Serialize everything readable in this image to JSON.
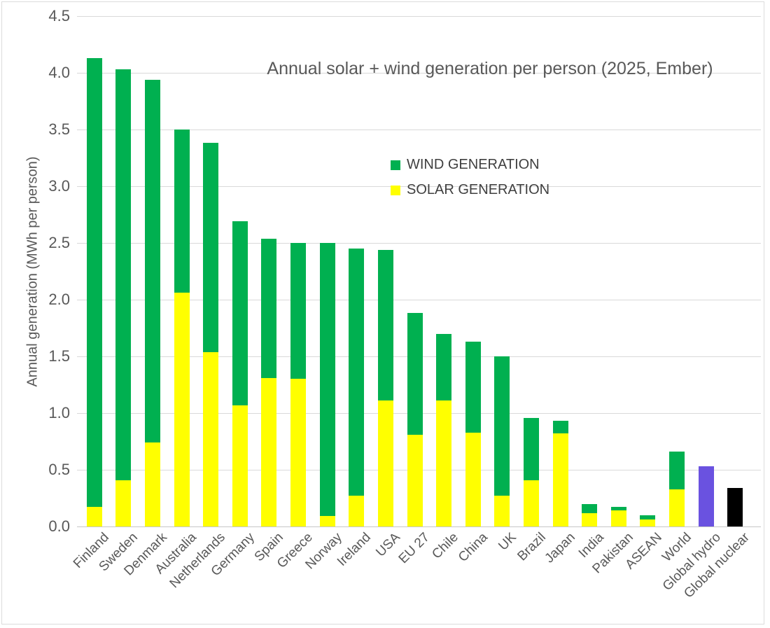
{
  "chart_data": {
    "type": "bar",
    "stacked": true,
    "title": "Annual solar + wind generation per person (2025, Ember)",
    "ylabel": "Annual generation (MWh per person)",
    "ylim": [
      0,
      4.5
    ],
    "ytick_step": 0.5,
    "ytick_labels": [
      "0.0",
      "0.5",
      "1.0",
      "1.5",
      "2.0",
      "2.5",
      "3.0",
      "3.5",
      "4.0",
      "4.5"
    ],
    "grid": true,
    "legend_position": "inside-upper-middle",
    "colors": {
      "wind": "#00B050",
      "solar": "#FFFF00",
      "hydro": "#6A52E0",
      "nuclear": "#000000",
      "gridline": "#D9D9D9",
      "axis_text": "#595959"
    },
    "legend": [
      {
        "label": "WIND GENERATION",
        "color": "#00B050"
      },
      {
        "label": "SOLAR GENERATION",
        "color": "#FFFF00"
      }
    ],
    "categories": [
      "Finland",
      "Sweden",
      "Denmark",
      "Australia",
      "Netherlands",
      "Germany",
      "Spain",
      "Greece",
      "Norway",
      "Ireland",
      "USA",
      "EU 27",
      "Chile",
      "China",
      "UK",
      "Brazil",
      "Japan",
      "India",
      "Pakistan",
      "ASEAN",
      "World",
      "Global hydro",
      "Global nuclear"
    ],
    "series": [
      {
        "name": "SOLAR GENERATION",
        "color": "#FFFF00",
        "values": [
          0.17,
          0.41,
          0.74,
          2.06,
          1.54,
          1.07,
          1.31,
          1.3,
          0.09,
          0.27,
          1.11,
          0.81,
          1.11,
          0.83,
          0.27,
          0.41,
          0.82,
          0.12,
          0.14,
          0.06,
          0.33,
          null,
          null
        ]
      },
      {
        "name": "WIND GENERATION",
        "color": "#00B050",
        "values": [
          3.96,
          3.62,
          3.2,
          1.44,
          1.84,
          1.62,
          1.23,
          1.2,
          2.41,
          2.18,
          1.33,
          1.07,
          0.59,
          0.8,
          1.23,
          0.55,
          0.11,
          0.08,
          0.03,
          0.04,
          0.33,
          null,
          null
        ]
      }
    ],
    "extra_bars": [
      {
        "category": "Global hydro",
        "index": 21,
        "value": 0.53,
        "color": "#6A52E0"
      },
      {
        "category": "Global nuclear",
        "index": 22,
        "value": 0.34,
        "color": "#000000"
      }
    ],
    "totals": [
      4.13,
      4.03,
      3.94,
      3.5,
      3.38,
      2.69,
      2.54,
      2.5,
      2.5,
      2.45,
      2.44,
      1.88,
      1.7,
      1.63,
      1.5,
      0.96,
      0.93,
      0.2,
      0.17,
      0.1,
      0.66,
      0.53,
      0.34
    ]
  }
}
